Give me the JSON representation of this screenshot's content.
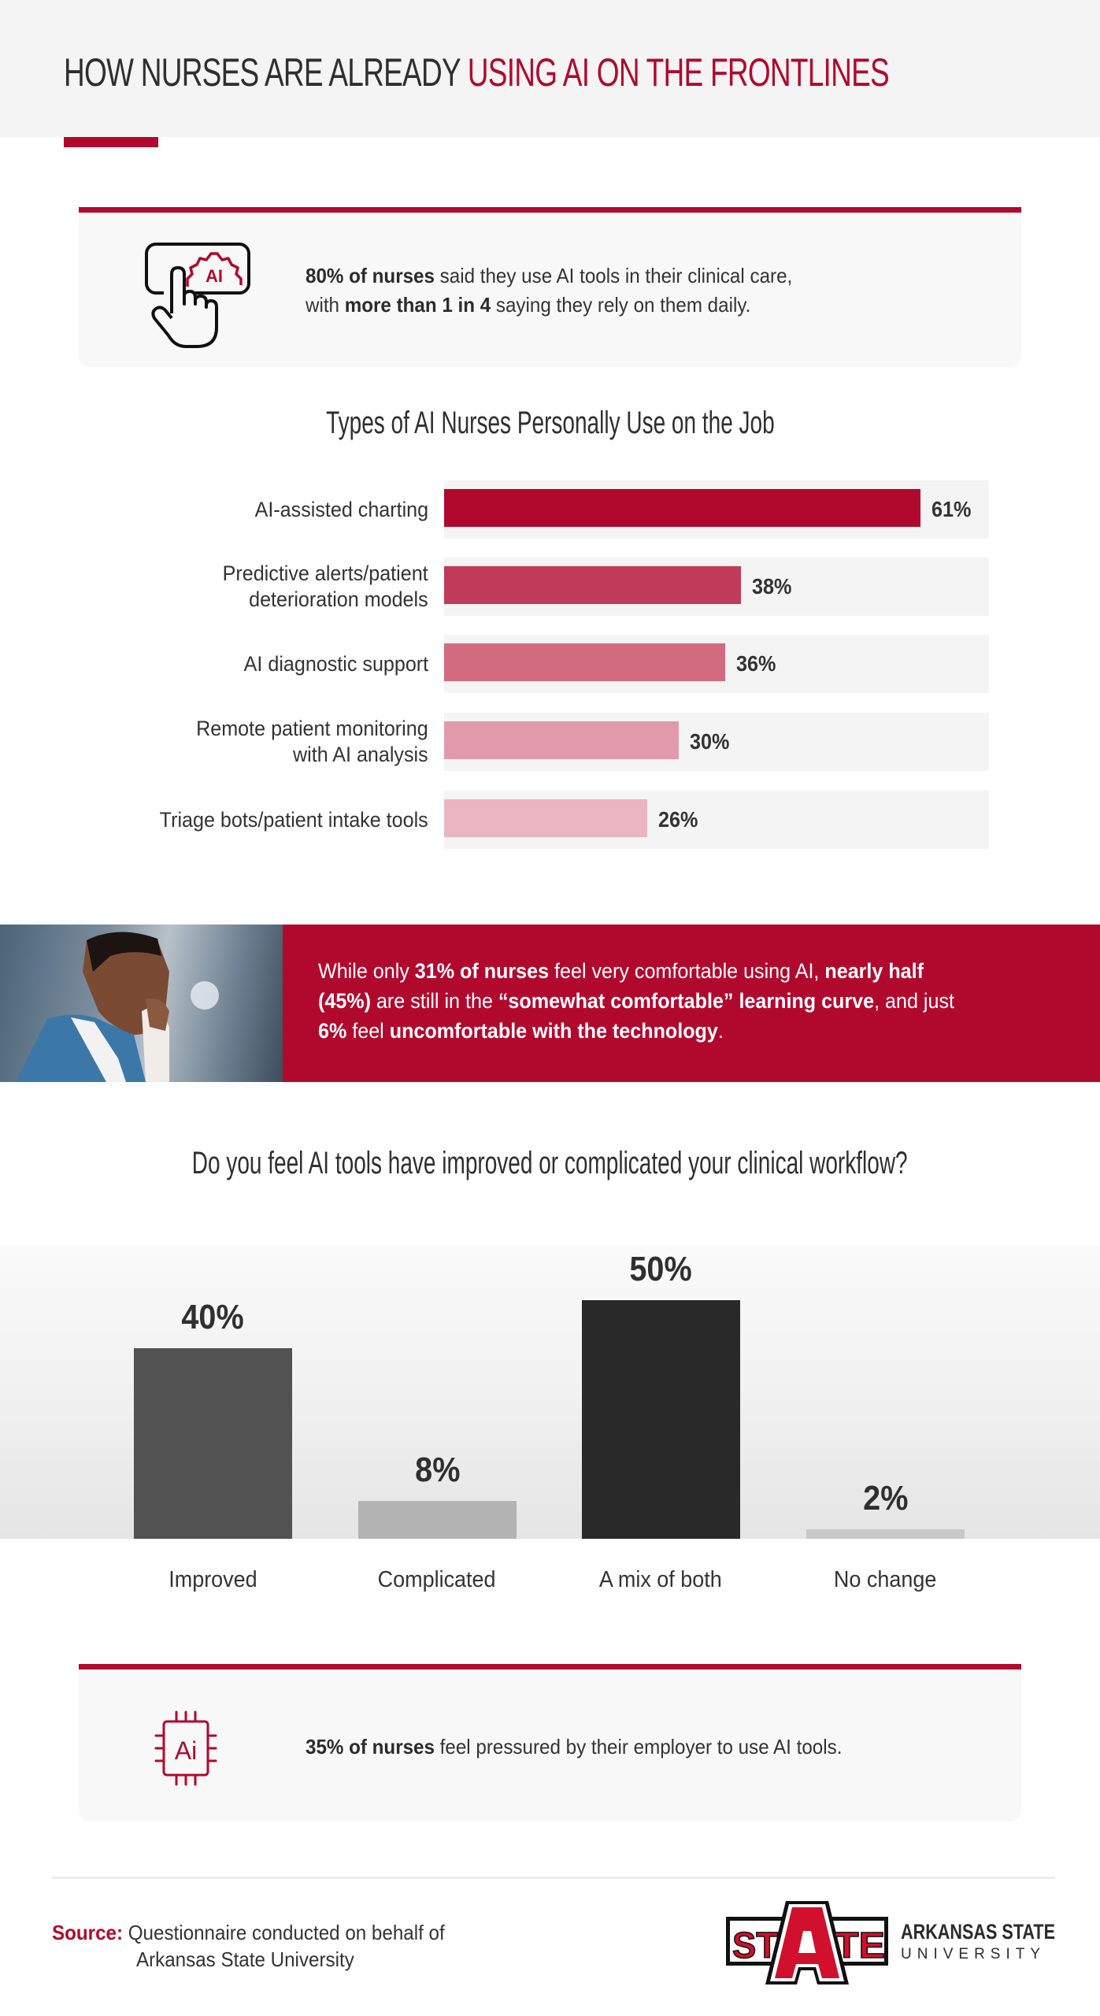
{
  "header": {
    "title_part1": "HOW NURSES ARE ALREADY ",
    "title_part2": "USING AI ON THE FRONTLINES"
  },
  "colors": {
    "accent": "#b1092e",
    "header_bg": "#f4f4f4",
    "card_bg": "#f8f8f8",
    "text_dark": "#2f2f2f"
  },
  "stat1": {
    "icon": "hand-touch-ai-gear-icon",
    "icon_label": "AI",
    "bold1": "80% of nurses",
    "text1": " said they use AI tools in their clinical care,",
    "text2_pre": "with ",
    "bold2": "more than 1 in 4",
    "text2_post": " saying they rely on them daily."
  },
  "comfort_banner": {
    "photo": "nurse-with-hand-on-face-photo",
    "t1": "While only ",
    "b1": "31% of nurses",
    "t2": " feel very comfortable using AI, ",
    "b2": "nearly half (45%)",
    "t3": " are still in the ",
    "b3": "“somewhat comfortable” learning curve",
    "t4": ", and just ",
    "b4": "6%",
    "t5": " feel ",
    "b5": "uncomfortable with the technology",
    "t6": "."
  },
  "stat2": {
    "icon": "ai-chip-icon",
    "icon_label": "Ai",
    "bold1": "35% of nurses",
    "text1": " feel pressured by their employer to use AI tools."
  },
  "footer": {
    "source_label": "Source:",
    "source_line1": " Questionnaire conducted on behalf of",
    "source_line2": "Arkansas State University",
    "logo_mark": "STATE",
    "logo_name": "ARKANSAS STATE",
    "logo_sub": "UNIVERSITY"
  },
  "chart_data": [
    {
      "type": "bar",
      "orientation": "horizontal",
      "title": "Types of AI Nurses Personally Use on the Job",
      "categories": [
        "AI-assisted charting",
        "Predictive alerts/patient deterioration models",
        "AI diagnostic support",
        "Remote patient monitoring with AI analysis",
        "Triage bots/patient intake tools"
      ],
      "values": [
        61,
        38,
        36,
        30,
        26
      ],
      "value_labels": [
        "61%",
        "38%",
        "36%",
        "30%",
        "26%"
      ],
      "bar_colors": [
        "#b1092e",
        "#c13a59",
        "#d26a80",
        "#e19aab",
        "#ebb5c2"
      ],
      "xlabel": "",
      "ylabel": "",
      "xlim": [
        0,
        100
      ],
      "grid": false,
      "legend": null
    },
    {
      "type": "bar",
      "orientation": "vertical",
      "title": "Do you feel AI tools have improved or complicated your clinical workflow?",
      "categories": [
        "Improved",
        "Complicated",
        "A mix of both",
        "No change"
      ],
      "values": [
        40,
        8,
        50,
        2
      ],
      "value_labels": [
        "40%",
        "8%",
        "50%",
        "2%"
      ],
      "bar_colors": [
        "#525252",
        "#b3b3b3",
        "#292929",
        "#c8c8c8"
      ],
      "xlabel": "",
      "ylabel": "",
      "ylim": [
        0,
        60
      ],
      "grid": false,
      "legend": null
    }
  ]
}
